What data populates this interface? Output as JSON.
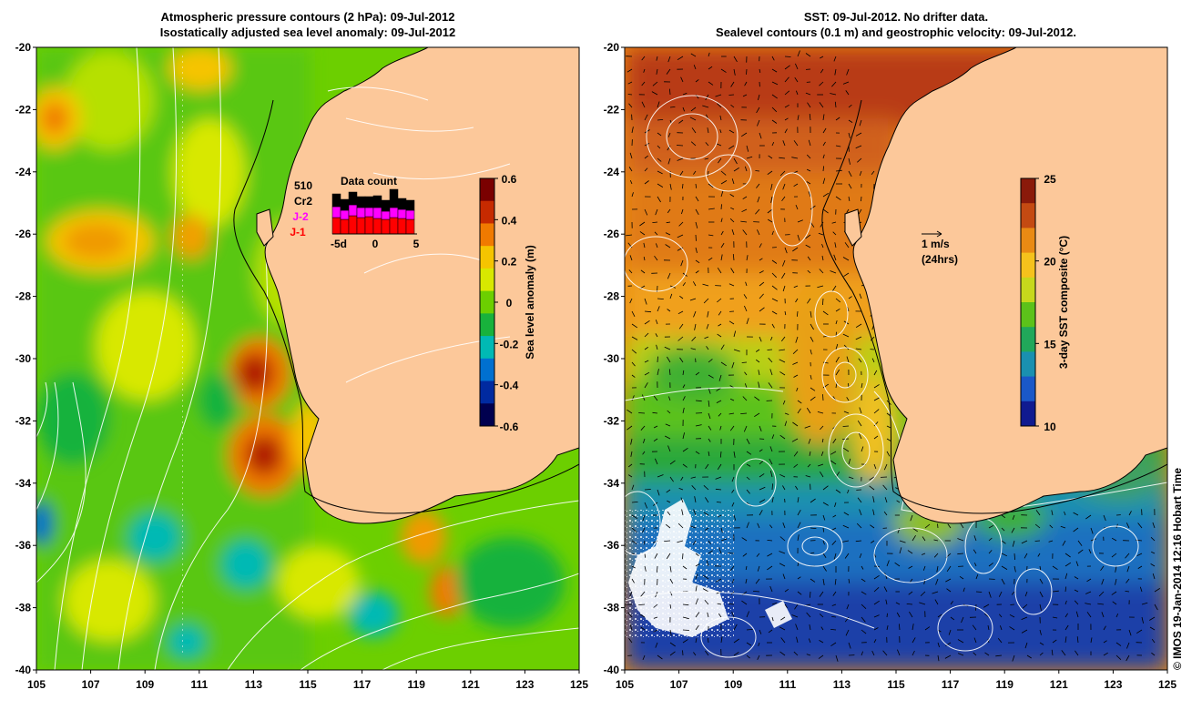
{
  "left_panel": {
    "title_line1": "Atmospheric pressure contours (2 hPa): 09-Jul-2012",
    "title_line2": "Isostatically adjusted sea level anomaly: 09-Jul-2012",
    "colorbar": {
      "label": "Sea level anomaly (m)",
      "ticks": [
        "0.6",
        "0.4",
        "0.2",
        "0",
        "-0.2",
        "-0.4",
        "-0.6"
      ],
      "colors": [
        "#7a0000",
        "#c62a00",
        "#f07a00",
        "#f5c400",
        "#d8e800",
        "#6ccf00",
        "#18b23c",
        "#00b9b4",
        "#0070d0",
        "#002aa0",
        "#00004f"
      ]
    },
    "data_count": {
      "title": "Data count",
      "count": "510",
      "series": [
        {
          "name": "Cr2",
          "color": "#000000"
        },
        {
          "name": "J-2",
          "color": "#ff00ff"
        },
        {
          "name": "J-1",
          "color": "#ff0000"
        }
      ],
      "x_ticks": [
        "-5d",
        "0",
        "5"
      ]
    }
  },
  "right_panel": {
    "title_line1": "SST: 09-Jul-2012. No drifter data.",
    "title_line2": "Sealevel contours (0.1 m) and geostrophic velocity: 09-Jul-2012.",
    "colorbar": {
      "label": "3-day SST composite (°C)",
      "ticks": [
        "25",
        "20",
        "15",
        "10"
      ],
      "colors": [
        "#8a1a0a",
        "#c44a12",
        "#e98a14",
        "#f5c21c",
        "#c6d81c",
        "#5cc21a",
        "#21a85a",
        "#1a90b0",
        "#1a58c8",
        "#101a90"
      ]
    },
    "velocity_scale": {
      "line1": "1 m/s",
      "line2": "(24hrs)"
    }
  },
  "axes": {
    "lat_ticks": [
      "-20",
      "-22",
      "-24",
      "-26",
      "-28",
      "-30",
      "-32",
      "-34",
      "-36",
      "-38",
      "-40"
    ],
    "lon_ticks": [
      "105",
      "107",
      "109",
      "111",
      "113",
      "115",
      "117",
      "119",
      "121",
      "123",
      "125"
    ]
  },
  "colors": {
    "land": "#fcc89a",
    "coast": "#000000"
  },
  "credit": "© IMOS 19-Jan-2014 12:16 Hobart Time"
}
